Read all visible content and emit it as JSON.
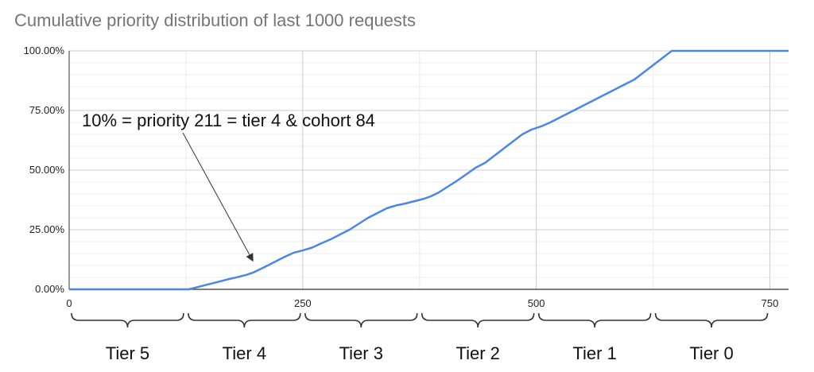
{
  "chart_data": {
    "type": "line",
    "title": "Cumulative priority distribution of last 1000 requests",
    "xlim": [
      0,
      770
    ],
    "ylim": [
      0,
      100
    ],
    "x_ticks": [
      {
        "value": 0,
        "label": "0"
      },
      {
        "value": 250,
        "label": "250"
      },
      {
        "value": 500,
        "label": "500"
      },
      {
        "value": 750,
        "label": "750"
      }
    ],
    "y_ticks": [
      {
        "value": 0,
        "label": "0.00%"
      },
      {
        "value": 25,
        "label": "25.00%"
      },
      {
        "value": 50,
        "label": "50.00%"
      },
      {
        "value": 75,
        "label": "75.00%"
      },
      {
        "value": 100,
        "label": "100.00%"
      }
    ],
    "grid": true,
    "line_color": "#4a86e8",
    "series": [
      {
        "x": [
          0,
          128,
          140,
          150,
          160,
          170,
          180,
          190,
          198,
          210,
          220,
          230,
          240,
          250,
          260,
          270,
          280,
          290,
          300,
          310,
          320,
          330,
          340,
          350,
          360,
          370,
          380,
          387,
          395,
          405,
          415,
          425,
          435,
          445,
          455,
          465,
          475,
          485,
          495,
          505,
          515,
          525,
          535,
          545,
          555,
          565,
          575,
          585,
          595,
          605,
          615,
          625,
          635,
          645,
          655,
          665,
          675,
          690,
          700,
          710,
          720,
          730,
          740,
          750,
          760,
          770
        ],
        "y": [
          0,
          0,
          1.2,
          2.2,
          3.2,
          4.2,
          5.1,
          6.1,
          7.2,
          9.5,
          11.5,
          13.5,
          15.3,
          16.3,
          17.5,
          19.3,
          21,
          23,
          25,
          27.5,
          30,
          32,
          34,
          35.2,
          36,
          37,
          38,
          39,
          40.5,
          43,
          45.5,
          48.2,
          51,
          53,
          56,
          59,
          62,
          65,
          67,
          68.3,
          70,
          72,
          74,
          76,
          78,
          80,
          82,
          84,
          86,
          88,
          91,
          94,
          97,
          100,
          100,
          100,
          100,
          100,
          100,
          100,
          100,
          100,
          100,
          100,
          100,
          100
        ]
      }
    ],
    "annotations": [
      {
        "text": "10% = priority 211 = tier 4 & cohort 84",
        "arrow_to": {
          "x": 198,
          "y": 9.5
        }
      }
    ],
    "tier_brackets": [
      {
        "label": "Tier 5",
        "from": 0,
        "to": 125
      },
      {
        "label": "Tier 4",
        "from": 125,
        "to": 250
      },
      {
        "label": "Tier 3",
        "from": 250,
        "to": 375
      },
      {
        "label": "Tier 2",
        "from": 375,
        "to": 500
      },
      {
        "label": "Tier 1",
        "from": 500,
        "to": 625
      },
      {
        "label": "Tier 0",
        "from": 625,
        "to": 750
      }
    ]
  }
}
